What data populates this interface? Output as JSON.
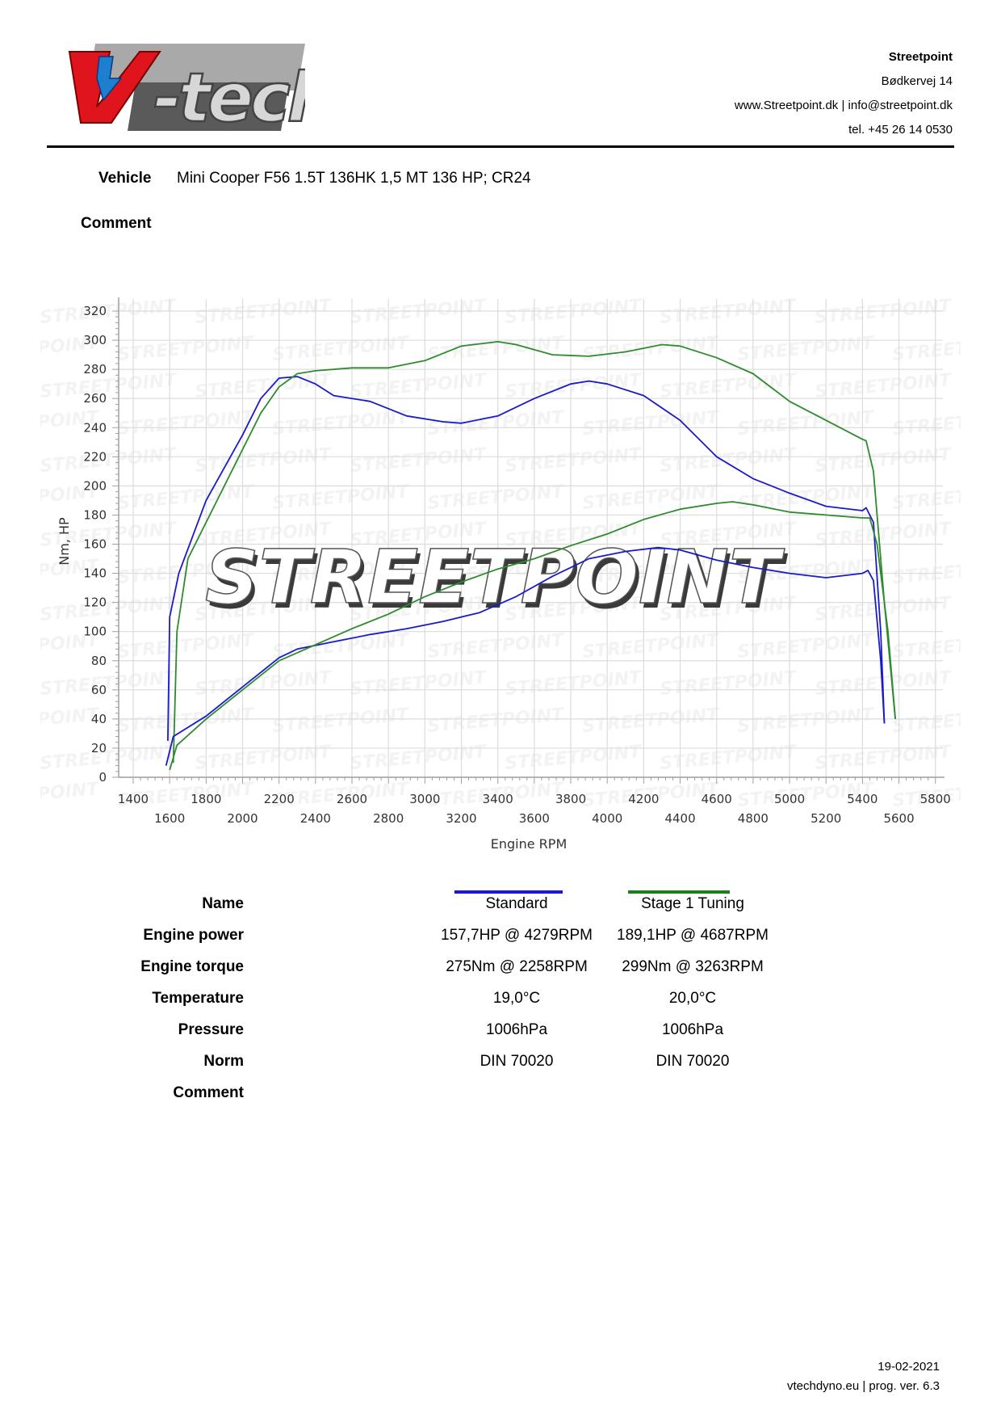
{
  "header": {
    "logo_text": "V-tech",
    "company": {
      "name": "Streetpoint",
      "address": "Bødkervej 14",
      "web_email": "www.Streetpoint.dk | info@streetpoint.dk",
      "phone": "tel. +45 26 14 0530"
    }
  },
  "vehicle": {
    "label": "Vehicle",
    "value": "Mini Cooper F56 1.5T 136HK 1,5 MT 136 HP; CR24"
  },
  "comment": {
    "label": "Comment",
    "value": ""
  },
  "watermark": "STREETPOINT",
  "colors": {
    "standard": "#1a1acc",
    "stage1": "#2e8b2e",
    "grid": "#dcdcdc",
    "axis": "#a0a0a0"
  },
  "chart_data": {
    "type": "line",
    "title": "",
    "xlabel": "Engine RPM",
    "ylabel": "Nm, HP",
    "xlim": [
      1400,
      5800
    ],
    "ylim": [
      0,
      320
    ],
    "grid": true,
    "x_ticks_row1": [
      1400,
      1800,
      2200,
      2600,
      3000,
      3400,
      3800,
      4200,
      4600,
      5000,
      5400,
      5800
    ],
    "x_ticks_row2": [
      1600,
      2000,
      2400,
      2800,
      3200,
      3600,
      4000,
      4400,
      4800,
      5200,
      5600
    ],
    "y_ticks": [
      0,
      20,
      40,
      60,
      80,
      100,
      120,
      140,
      160,
      180,
      200,
      220,
      240,
      260,
      280,
      300,
      320
    ],
    "legend": [
      "Standard",
      "Stage 1 Tuning"
    ],
    "series": [
      {
        "name": "Standard torque (Nm)",
        "color": "#1a1acc",
        "x": [
          1590,
          1600,
          1650,
          1800,
          2000,
          2100,
          2200,
          2300,
          2400,
          2500,
          2700,
          2900,
          3100,
          3200,
          3400,
          3600,
          3800,
          3900,
          4000,
          4200,
          4400,
          4600,
          4800,
          5000,
          5200,
          5400,
          5420,
          5460,
          5500,
          5520
        ],
        "y": [
          25,
          110,
          140,
          190,
          235,
          260,
          274,
          275,
          270,
          262,
          258,
          248,
          244,
          243,
          248,
          260,
          270,
          272,
          270,
          262,
          245,
          220,
          205,
          195,
          186,
          183,
          185,
          175,
          100,
          37
        ]
      },
      {
        "name": "Stage 1 Tuning torque (Nm)",
        "color": "#2e8b2e",
        "x": [
          1620,
          1640,
          1700,
          1900,
          2100,
          2200,
          2300,
          2400,
          2600,
          2800,
          3000,
          3200,
          3400,
          3500,
          3700,
          3900,
          4100,
          4300,
          4400,
          4600,
          4800,
          5000,
          5200,
          5400,
          5420,
          5460,
          5520,
          5580
        ],
        "y": [
          10,
          100,
          150,
          200,
          250,
          268,
          277,
          279,
          281,
          281,
          286,
          296,
          299,
          297,
          290,
          289,
          292,
          297,
          296,
          288,
          277,
          258,
          245,
          232,
          231,
          210,
          120,
          40
        ]
      },
      {
        "name": "Standard power (HP)",
        "color": "#1a1acc",
        "x": [
          1580,
          1620,
          1800,
          2000,
          2200,
          2300,
          2500,
          2700,
          2900,
          3100,
          3300,
          3500,
          3700,
          3900,
          4100,
          4279,
          4400,
          4600,
          4800,
          5000,
          5200,
          5400,
          5430,
          5460,
          5500,
          5520
        ],
        "y": [
          8,
          28,
          42,
          62,
          82,
          88,
          93,
          98,
          102,
          107,
          113,
          124,
          138,
          150,
          155,
          157.7,
          156,
          149,
          144,
          140,
          137,
          140,
          142,
          135,
          80,
          37
        ]
      },
      {
        "name": "Stage 1 Tuning power (HP)",
        "color": "#2e8b2e",
        "x": [
          1600,
          1640,
          1800,
          2000,
          2200,
          2400,
          2600,
          2800,
          3000,
          3200,
          3400,
          3600,
          3800,
          4000,
          4200,
          4400,
          4600,
          4687,
          4800,
          5000,
          5200,
          5400,
          5440,
          5480,
          5540,
          5580
        ],
        "y": [
          5,
          22,
          40,
          60,
          80,
          91,
          102,
          112,
          124,
          134,
          143,
          150,
          159,
          167,
          177,
          184,
          188,
          189.1,
          187,
          182,
          180,
          178,
          178,
          160,
          100,
          40
        ]
      }
    ]
  },
  "results": {
    "rows": [
      {
        "label": "Name",
        "standard": "Standard",
        "stage1": "Stage 1 Tuning"
      },
      {
        "label": "Engine power",
        "standard": "157,7HP @  4279RPM",
        "stage1": "189,1HP @  4687RPM"
      },
      {
        "label": "Engine torque",
        "standard": "275Nm @ 2258RPM",
        "stage1": "299Nm @ 3263RPM"
      },
      {
        "label": "Temperature",
        "standard": "19,0°C",
        "stage1": "20,0°C"
      },
      {
        "label": "Pressure",
        "standard": "1006hPa",
        "stage1": "1006hPa"
      },
      {
        "label": "Norm",
        "standard": "DIN 70020",
        "stage1": "DIN 70020"
      },
      {
        "label": "Comment",
        "standard": "",
        "stage1": ""
      }
    ]
  },
  "footer": {
    "date": "19-02-2021",
    "program": "vtechdyno.eu | prog. ver. 6.3"
  }
}
